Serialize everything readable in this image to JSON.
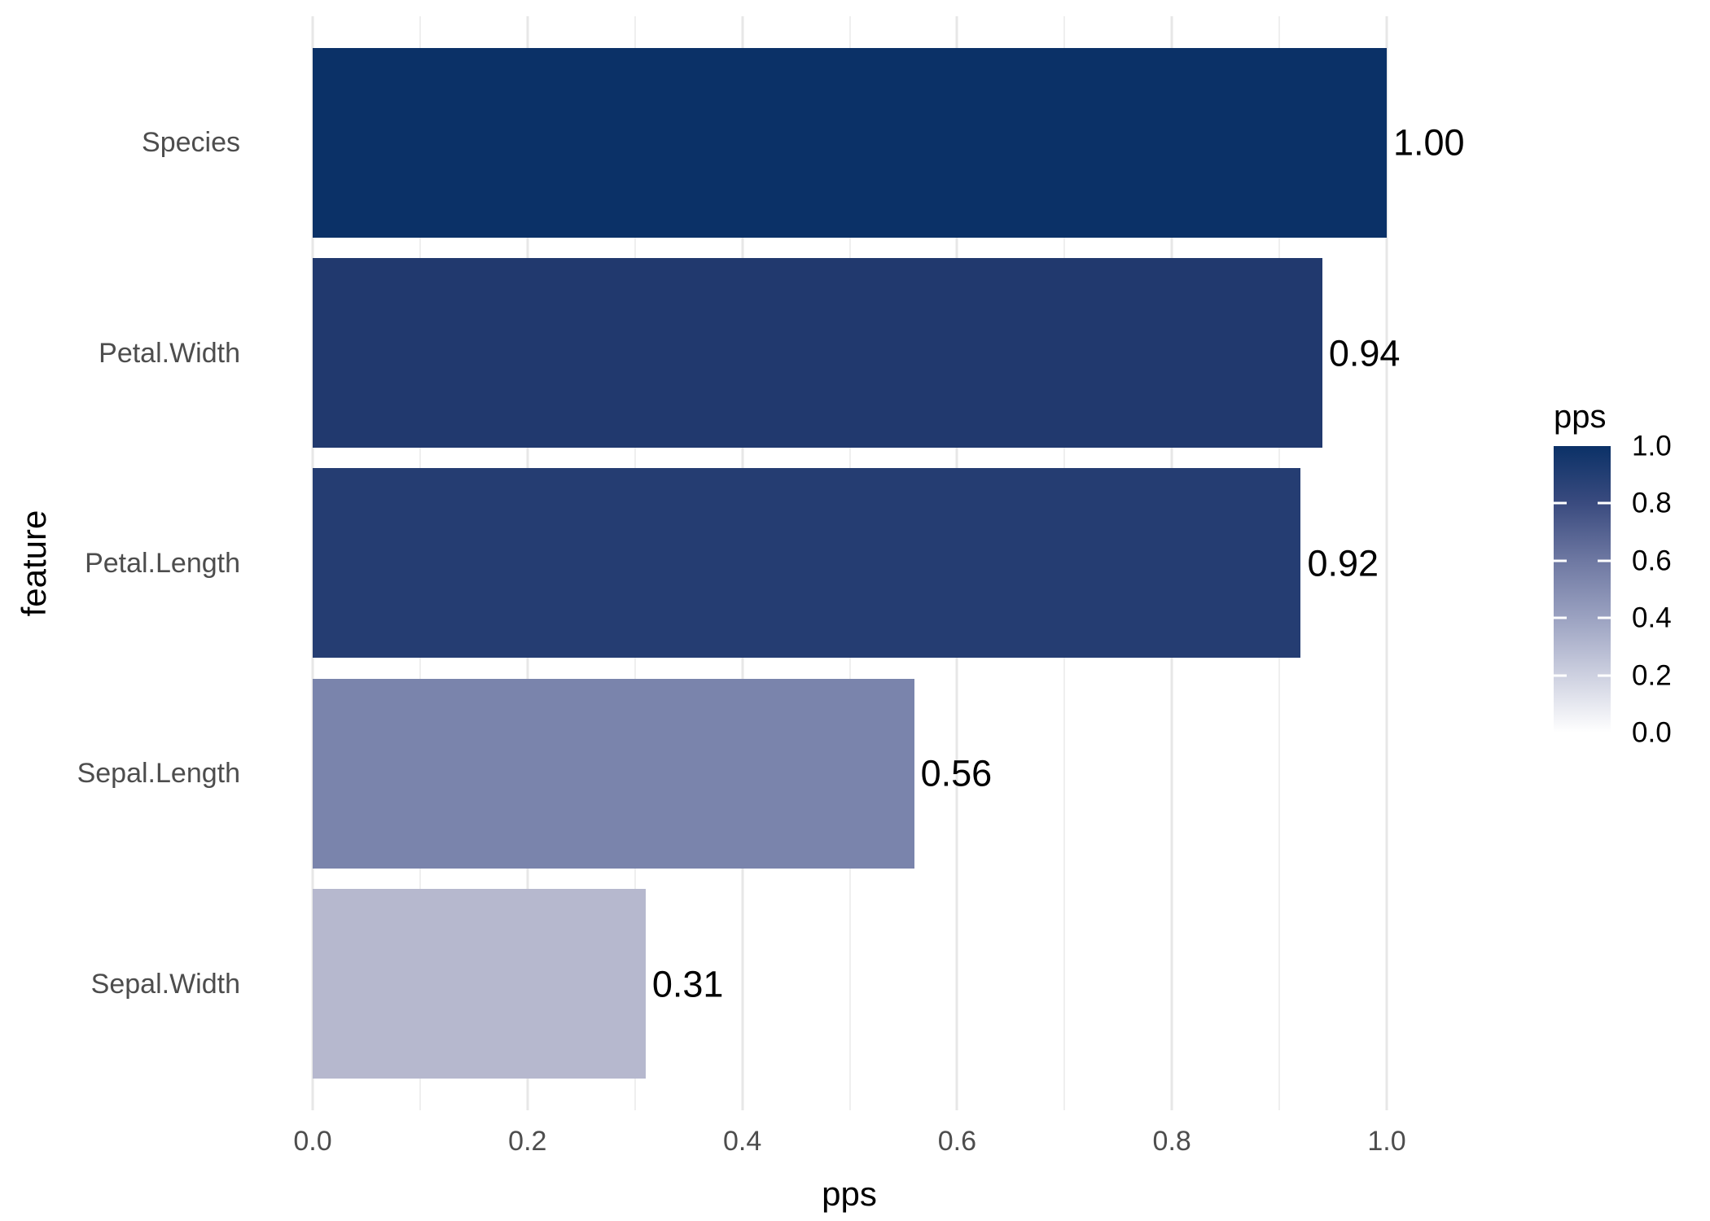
{
  "chart_data": {
    "type": "bar",
    "orientation": "horizontal",
    "categories": [
      "Species",
      "Petal.Width",
      "Petal.Length",
      "Sepal.Length",
      "Sepal.Width"
    ],
    "values": [
      1.0,
      0.94,
      0.92,
      0.56,
      0.31
    ],
    "value_labels": [
      "1.00",
      "0.94",
      "0.92",
      "0.56",
      "0.31"
    ],
    "bar_colors": [
      "#0B3167",
      "#21396E",
      "#253D72",
      "#7A84AC",
      "#B6B8CE"
    ],
    "xlabel": "pps",
    "ylabel": "feature",
    "xlim": [
      0,
      1
    ],
    "x_major_ticks": [
      0.0,
      0.2,
      0.4,
      0.6,
      0.8,
      1.0
    ],
    "x_tick_labels": [
      "0.0",
      "0.2",
      "0.4",
      "0.6",
      "0.8",
      "1.0"
    ],
    "x_minor_ticks": [
      0.1,
      0.3,
      0.5,
      0.7,
      0.9
    ],
    "grid": "vertical major and minor gridlines on white background",
    "bar_width_fraction": 0.9,
    "legend": {
      "title": "pps",
      "position": "right",
      "type": "colorbar",
      "ticks": [
        1.0,
        0.8,
        0.6,
        0.4,
        0.2,
        0.0
      ],
      "tick_labels": [
        "1.0",
        "0.8",
        "0.6",
        "0.4",
        "0.2",
        "0.0"
      ],
      "gradient_stops": [
        {
          "value": 0.0,
          "color": "#FFFFFF"
        },
        {
          "value": 0.2,
          "color": "#CDD0E0"
        },
        {
          "value": 0.4,
          "color": "#9BA2C1"
        },
        {
          "value": 0.6,
          "color": "#6E78A2"
        },
        {
          "value": 0.8,
          "color": "#3A4B7F"
        },
        {
          "value": 1.0,
          "color": "#0B3167"
        }
      ]
    },
    "colors": {
      "background": "#FFFFFF",
      "axis_text": "#4D4D4D",
      "axis_title": "#000000",
      "value_label": "#000000",
      "grid_major": "#E7E7E7",
      "grid_minor": "#EFEFEF",
      "legend_tick": "#FFFFFF"
    }
  }
}
